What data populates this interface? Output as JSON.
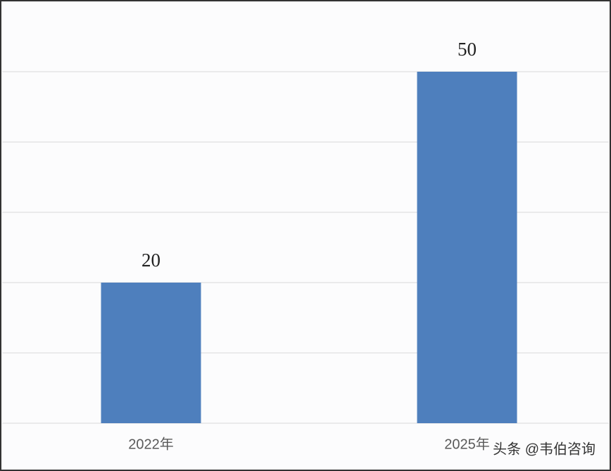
{
  "chart_data": {
    "type": "bar",
    "categories": [
      "2022年",
      "2025年"
    ],
    "values": [
      20,
      50
    ],
    "color": "#4e7fbd",
    "ylim": [
      0,
      60
    ],
    "yticks": [
      0,
      10,
      20,
      30,
      40,
      50
    ],
    "grid": true,
    "watermark": "头条 @韦伯咨询"
  }
}
